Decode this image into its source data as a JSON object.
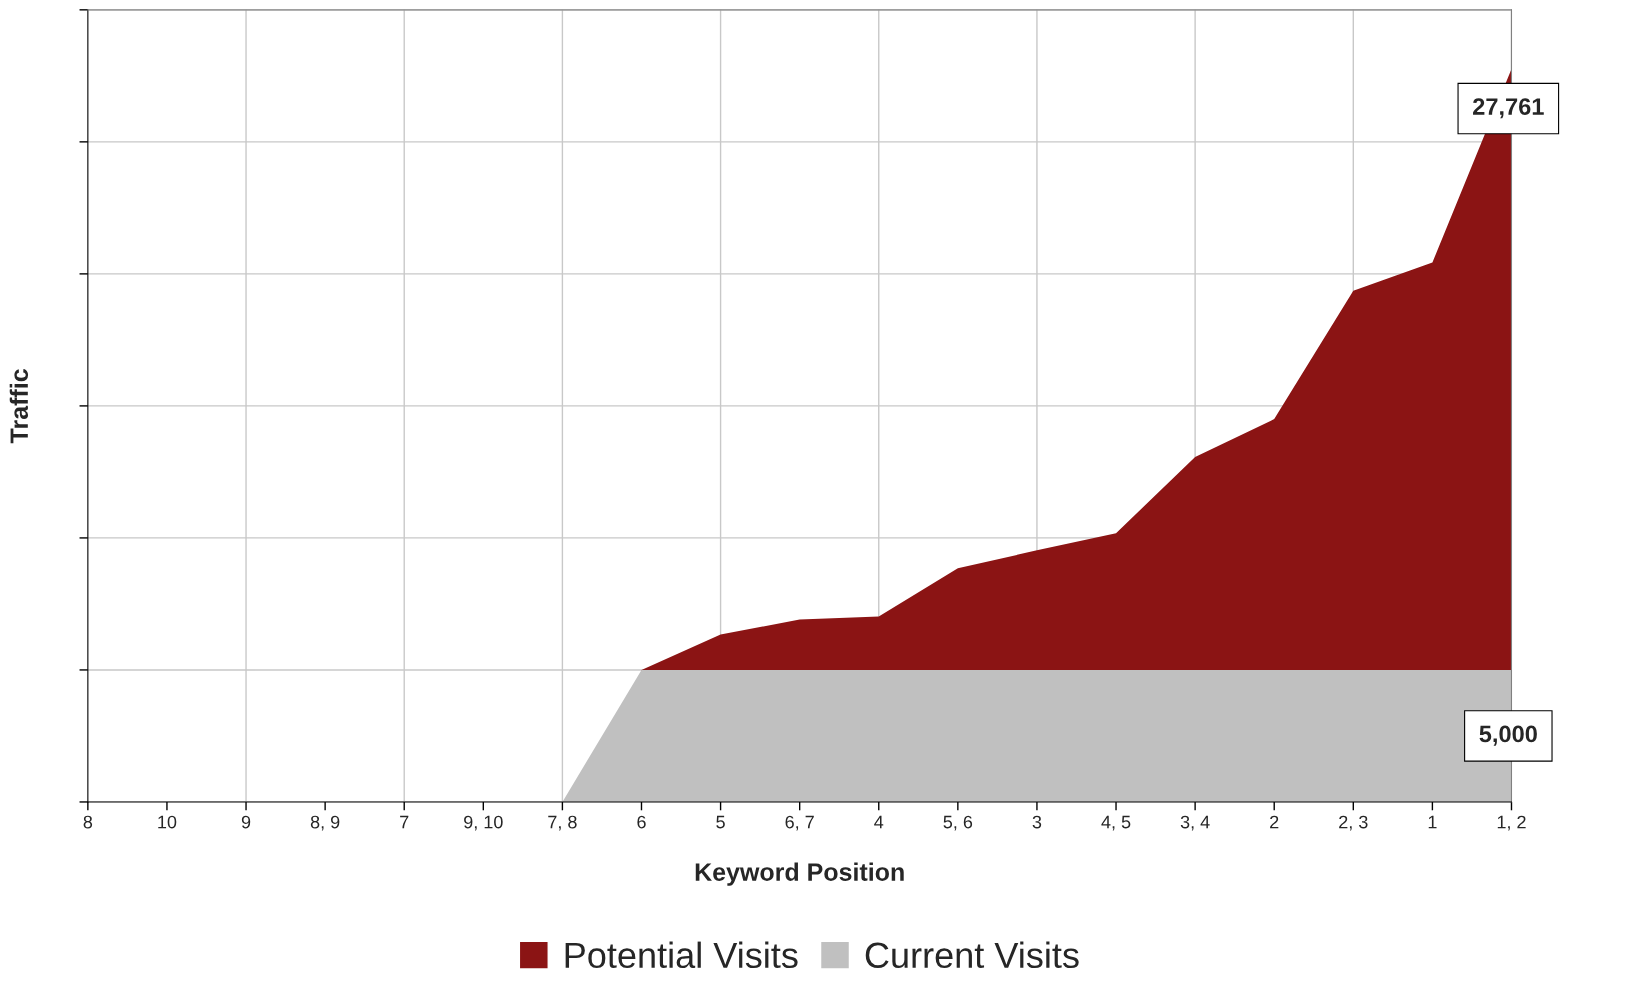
{
  "chart_data": {
    "type": "area",
    "xlabel": "Keyword Position",
    "ylabel": "Traffic",
    "categories": [
      "8",
      "10",
      "9",
      "8, 9",
      "7",
      "9, 10",
      "7, 8",
      "6",
      "5",
      "6, 7",
      "4",
      "5, 6",
      "3",
      "4, 5",
      "3, 4",
      "2",
      "2, 3",
      "1",
      "1, 2"
    ],
    "series": [
      {
        "name": "Potential Visits",
        "color": "#8b1414",
        "values": [
          null,
          null,
          null,
          null,
          null,
          null,
          null,
          5000,
          6340,
          6910,
          7020,
          8850,
          9530,
          10180,
          13060,
          14500,
          19360,
          20430,
          27761
        ],
        "value_labels": [
          null,
          null,
          null,
          null,
          null,
          null,
          null,
          null,
          null,
          null,
          null,
          null,
          null,
          null,
          null,
          null,
          null,
          null,
          "27,761"
        ]
      },
      {
        "name": "Current Visits",
        "color": "#c0c0c0",
        "values": [
          0,
          0,
          0,
          0,
          0,
          0,
          0,
          5000,
          5000,
          5000,
          5000,
          5000,
          5000,
          5000,
          5000,
          5000,
          5000,
          5000,
          5000
        ],
        "value_labels": [
          null,
          null,
          null,
          null,
          null,
          null,
          null,
          null,
          null,
          null,
          null,
          null,
          null,
          null,
          null,
          null,
          null,
          null,
          "5,000"
        ]
      }
    ],
    "ylim": [
      0,
      30000
    ],
    "yticks": [
      {
        "value": 0,
        "label": null
      },
      {
        "value": 5000,
        "label": null
      },
      {
        "value": 10000,
        "label": null
      },
      {
        "value": 15000,
        "label": null
      },
      {
        "value": 20000,
        "label": null
      },
      {
        "value": 25000,
        "label": null
      },
      {
        "value": 30000,
        "label": null
      }
    ],
    "grid": true,
    "legend": "bottom"
  }
}
